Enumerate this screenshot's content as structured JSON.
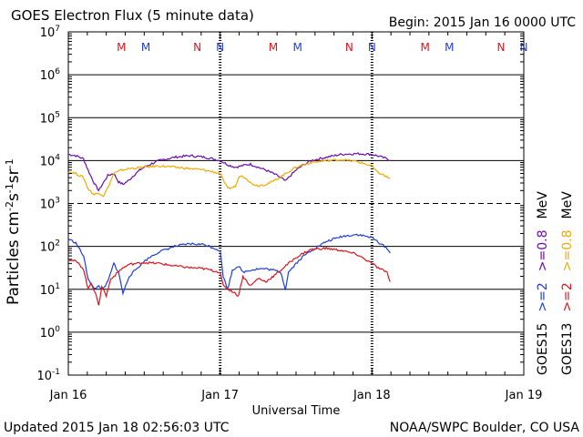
{
  "title": "GOES Electron Flux (5 minute data)",
  "begin": "Begin: 2015 Jan 16 0000 UTC",
  "updated": "Updated 2015 Jan 18 02:56:03 UTC",
  "credit": "NOAA/SWPC Boulder, CO USA",
  "xlabel": "Universal Time",
  "ylabel": "Particles cm",
  "ylabel_parts": [
    "-2",
    "s",
    "-1",
    "sr",
    "-1"
  ],
  "colors": {
    "purple": "#6a0dad",
    "orange": "#f2a900",
    "blue": "#1f3fdc",
    "red": "#e0141c"
  },
  "markers": [
    {
      "label": "M",
      "color": "#e0141c",
      "day": 0.35
    },
    {
      "label": "M",
      "color": "#1f3fdc",
      "day": 0.51
    },
    {
      "label": "N",
      "color": "#e0141c",
      "day": 0.85
    },
    {
      "label": "N",
      "color": "#1f3fdc",
      "day": 1.0
    },
    {
      "label": "M",
      "color": "#e0141c",
      "day": 1.35
    },
    {
      "label": "M",
      "color": "#1f3fdc",
      "day": 1.51
    },
    {
      "label": "N",
      "color": "#e0141c",
      "day": 1.85
    },
    {
      "label": "N",
      "color": "#1f3fdc",
      "day": 2.0
    },
    {
      "label": "M",
      "color": "#e0141c",
      "day": 2.35
    },
    {
      "label": "M",
      "color": "#1f3fdc",
      "day": 2.51
    },
    {
      "label": "N",
      "color": "#e0141c",
      "day": 2.85
    },
    {
      "label": "N",
      "color": "#1f3fdc",
      "day": 3.0
    }
  ],
  "right_legend": {
    "col1": [
      {
        "text": "GOES15",
        "color": "#000000"
      },
      {
        "text": ">=2",
        "color": "#1f3fdc"
      },
      {
        "text": ">=0.8",
        "color": "#6a0dad"
      },
      {
        "text": "MeV",
        "color": "#000000"
      }
    ],
    "col2": [
      {
        "text": "GOES13",
        "color": "#000000"
      },
      {
        "text": ">=2",
        "color": "#e0141c"
      },
      {
        "text": ">=0.8",
        "color": "#f2a900"
      },
      {
        "text": "MeV",
        "color": "#000000"
      }
    ]
  },
  "chart_data": {
    "type": "line",
    "title": "GOES Electron Flux (5 minute data)",
    "xlabel": "Universal Time",
    "ylabel": "Particles cm-2 s-1 sr-1",
    "x_ticks": [
      "Jan 16",
      "Jan 17",
      "Jan 18",
      "Jan 19"
    ],
    "xlim_days": [
      0,
      3
    ],
    "ylim": [
      0.1,
      10000000
    ],
    "yscale": "log",
    "y_ticks": [
      {
        "base": "10",
        "exp": "-1"
      },
      {
        "base": "10",
        "exp": "0"
      },
      {
        "base": "10",
        "exp": "1"
      },
      {
        "base": "10",
        "exp": "2"
      },
      {
        "base": "10",
        "exp": "3"
      },
      {
        "base": "10",
        "exp": "4"
      },
      {
        "base": "10",
        "exp": "5"
      },
      {
        "base": "10",
        "exp": "6"
      },
      {
        "base": "10",
        "exp": "7"
      }
    ],
    "threshold": 1000,
    "grid": true,
    "series": [
      {
        "name": "GOES15 >=0.8 MeV",
        "color": "#6a0dad",
        "x": [
          0,
          0.05,
          0.1,
          0.13,
          0.17,
          0.2,
          0.23,
          0.26,
          0.3,
          0.33,
          0.36,
          0.4,
          0.43,
          0.47,
          0.5,
          0.55,
          0.6,
          0.7,
          0.8,
          0.9,
          1.0,
          1.05,
          1.1,
          1.14,
          1.17,
          1.2,
          1.25,
          1.3,
          1.35,
          1.4,
          1.43,
          1.45,
          1.5,
          1.55,
          1.6,
          1.7,
          1.8,
          1.9,
          2.0,
          2.05,
          2.1,
          2.12
        ],
        "values": [
          14000,
          13000,
          11000,
          6000,
          3000,
          2000,
          3000,
          4500,
          5000,
          3200,
          2800,
          3500,
          4500,
          6000,
          7000,
          8500,
          10000,
          12000,
          13000,
          12000,
          10000,
          8000,
          7000,
          7500,
          8000,
          8200,
          7000,
          6000,
          5000,
          4000,
          3300,
          4000,
          6000,
          8000,
          10000,
          12000,
          14000,
          14500,
          14000,
          12500,
          11000,
          10000
        ]
      },
      {
        "name": "GOES13 >=0.8 MeV",
        "color": "#f2a900",
        "x": [
          0,
          0.05,
          0.1,
          0.13,
          0.17,
          0.2,
          0.23,
          0.26,
          0.3,
          0.35,
          0.4,
          0.5,
          0.6,
          0.7,
          0.8,
          0.9,
          1.0,
          1.02,
          1.05,
          1.1,
          1.13,
          1.17,
          1.2,
          1.25,
          1.3,
          1.35,
          1.4,
          1.45,
          1.5,
          1.55,
          1.6,
          1.7,
          1.8,
          1.9,
          2.0,
          2.03,
          2.08,
          2.12
        ],
        "values": [
          5500,
          5000,
          4000,
          2200,
          1600,
          1800,
          1500,
          2300,
          5000,
          6000,
          6500,
          7000,
          7500,
          7000,
          6500,
          6000,
          5000,
          3500,
          2200,
          2500,
          4500,
          4000,
          3000,
          2600,
          2800,
          3300,
          4200,
          5500,
          7000,
          8000,
          9000,
          10000,
          10500,
          9500,
          7500,
          5500,
          4500,
          3800
        ]
      },
      {
        "name": "GOES15 >=2 MeV",
        "color": "#1f3fdc",
        "x": [
          0,
          0.05,
          0.1,
          0.13,
          0.17,
          0.2,
          0.23,
          0.26,
          0.3,
          0.33,
          0.36,
          0.4,
          0.45,
          0.5,
          0.55,
          0.6,
          0.7,
          0.8,
          0.9,
          1.0,
          1.02,
          1.05,
          1.08,
          1.12,
          1.15,
          1.2,
          1.25,
          1.3,
          1.35,
          1.4,
          1.43,
          1.45,
          1.5,
          1.55,
          1.6,
          1.7,
          1.8,
          1.9,
          2.0,
          2.05,
          2.1,
          2.12
        ],
        "values": [
          150,
          120,
          60,
          18,
          10,
          12,
          10,
          15,
          40,
          25,
          8,
          20,
          30,
          45,
          60,
          75,
          100,
          115,
          110,
          80,
          20,
          10,
          28,
          35,
          25,
          28,
          30,
          30,
          28,
          25,
          10,
          25,
          40,
          60,
          80,
          130,
          170,
          190,
          160,
          120,
          90,
          70
        ]
      },
      {
        "name": "GOES13 >=2 MeV",
        "color": "#e0141c",
        "x": [
          0,
          0.05,
          0.1,
          0.13,
          0.15,
          0.18,
          0.2,
          0.22,
          0.25,
          0.28,
          0.3,
          0.35,
          0.4,
          0.5,
          0.6,
          0.7,
          0.8,
          0.9,
          1.0,
          1.02,
          1.05,
          1.08,
          1.12,
          1.15,
          1.2,
          1.25,
          1.3,
          1.35,
          1.4,
          1.45,
          1.5,
          1.55,
          1.6,
          1.7,
          1.8,
          1.9,
          2.0,
          2.05,
          2.1,
          2.12
        ],
        "values": [
          50,
          45,
          30,
          10,
          14,
          8,
          4,
          12,
          7,
          18,
          20,
          30,
          38,
          42,
          40,
          35,
          32,
          30,
          25,
          12,
          10,
          9,
          7,
          20,
          12,
          18,
          15,
          20,
          28,
          40,
          55,
          70,
          85,
          90,
          80,
          65,
          40,
          30,
          25,
          15
        ]
      }
    ]
  }
}
